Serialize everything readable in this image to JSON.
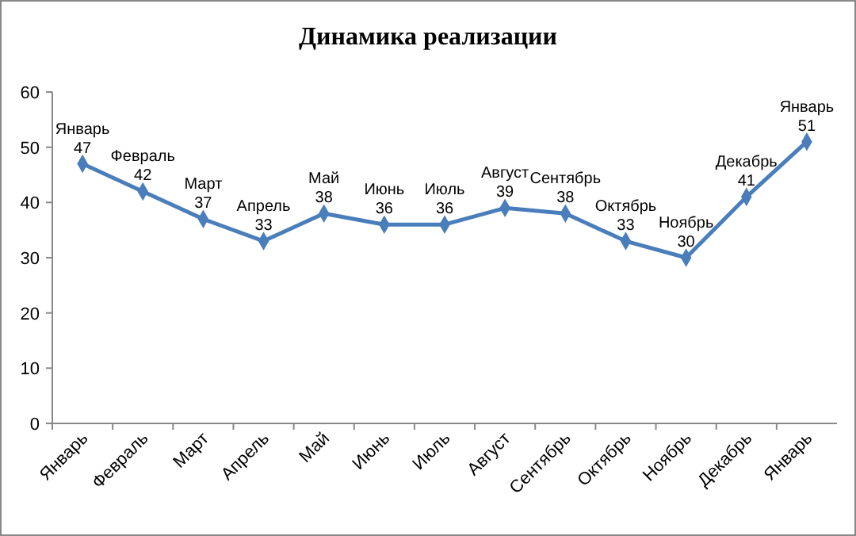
{
  "chart_data": {
    "type": "line",
    "title": "Динамика реализации",
    "categories": [
      "Январь",
      "Февраль",
      "Март",
      "Апрель",
      "Май",
      "Июнь",
      "Июль",
      "Август",
      "Сентябрь",
      "Октябрь",
      "Ноябрь",
      "Декабрь",
      "Январь"
    ],
    "values": [
      47,
      42,
      37,
      33,
      38,
      36,
      36,
      39,
      38,
      33,
      30,
      41,
      51
    ],
    "color": "#4a7ebb",
    "ylim": [
      0,
      60
    ],
    "yticks": [
      0,
      10,
      20,
      30,
      40,
      50,
      60
    ],
    "grid": false,
    "marker": "diamond",
    "line_style": "solid",
    "data_labels": true
  }
}
